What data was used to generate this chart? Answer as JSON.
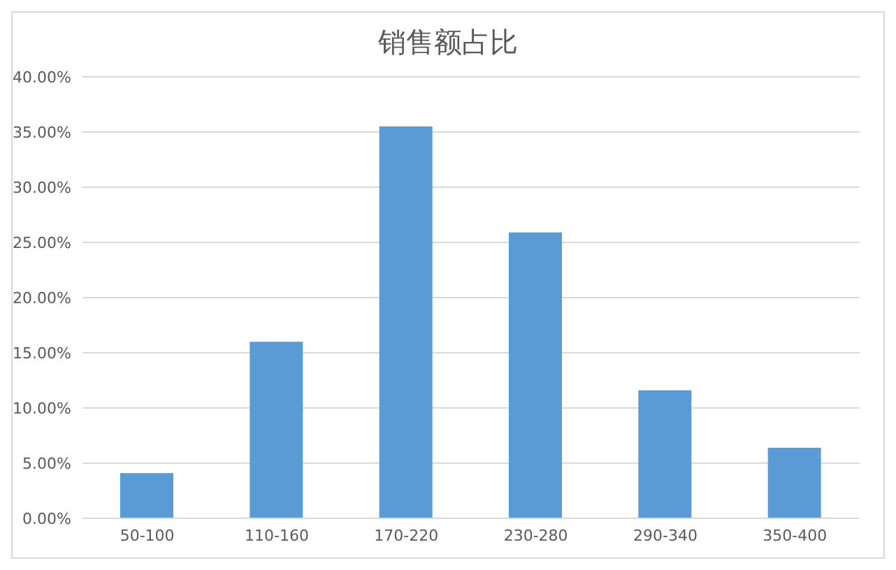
{
  "chart_data": {
    "type": "bar",
    "title": "销售额占比",
    "categories": [
      "50-100",
      "110-160",
      "170-220",
      "230-280",
      "290-340",
      "350-400"
    ],
    "values": [
      4.1,
      16.0,
      35.5,
      25.9,
      11.6,
      6.4
    ],
    "color": "#5b9bd5",
    "ylim": [
      0,
      40
    ],
    "yticks": [
      {
        "value": 0,
        "label": "0.00%"
      },
      {
        "value": 5,
        "label": "5.00%"
      },
      {
        "value": 10,
        "label": "10.00%"
      },
      {
        "value": 15,
        "label": "15.00%"
      },
      {
        "value": 20,
        "label": "20.00%"
      },
      {
        "value": 25,
        "label": "25.00%"
      },
      {
        "value": 30,
        "label": "30.00%"
      },
      {
        "value": 35,
        "label": "35.00%"
      },
      {
        "value": 40,
        "label": "40.00%"
      }
    ],
    "grid": "y"
  }
}
